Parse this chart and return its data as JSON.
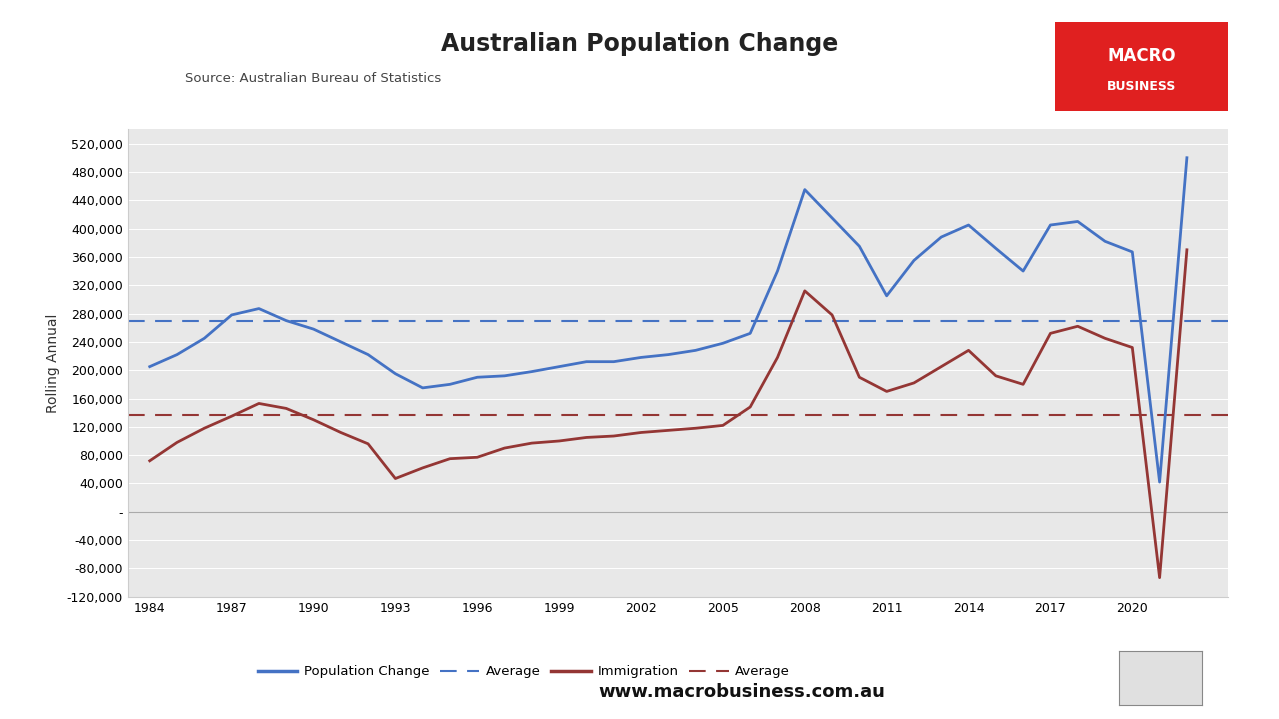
{
  "title": "Australian Population Change",
  "subtitle": "Source: Australian Bureau of Statistics",
  "ylabel": "Rolling Annual",
  "fig_bg_color": "#ffffff",
  "plot_bg_color": "#e8e8e8",
  "ylim": [
    -120000,
    540000
  ],
  "yticks": [
    -120000,
    -80000,
    -40000,
    0,
    40000,
    80000,
    120000,
    160000,
    200000,
    240000,
    280000,
    320000,
    360000,
    400000,
    440000,
    480000,
    520000
  ],
  "pop_avg": 270000,
  "imm_avg": 137000,
  "pop_color": "#4472c4",
  "imm_color": "#943634",
  "pop_avg_color": "#4472c4",
  "imm_avg_color": "#943634",
  "footer_url": "www.macrobusiness.com.au",
  "macro_box_color": "#e02020",
  "years": [
    1984,
    1985,
    1986,
    1987,
    1988,
    1989,
    1990,
    1991,
    1992,
    1993,
    1994,
    1995,
    1996,
    1997,
    1998,
    1999,
    2000,
    2001,
    2002,
    2003,
    2004,
    2005,
    2006,
    2007,
    2008,
    2009,
    2010,
    2011,
    2012,
    2013,
    2014,
    2015,
    2016,
    2017,
    2018,
    2019,
    2020,
    2021,
    2022
  ],
  "pop_change": [
    205000,
    222000,
    245000,
    278000,
    287000,
    270000,
    258000,
    240000,
    222000,
    195000,
    175000,
    180000,
    190000,
    192000,
    198000,
    205000,
    212000,
    212000,
    218000,
    222000,
    228000,
    238000,
    252000,
    340000,
    455000,
    415000,
    375000,
    305000,
    355000,
    388000,
    405000,
    372000,
    340000,
    405000,
    410000,
    382000,
    367000,
    42000,
    500000
  ],
  "immigration": [
    72000,
    98000,
    118000,
    135000,
    153000,
    146000,
    130000,
    112000,
    96000,
    47000,
    62000,
    75000,
    77000,
    90000,
    97000,
    100000,
    105000,
    107000,
    112000,
    115000,
    118000,
    122000,
    148000,
    218000,
    312000,
    278000,
    190000,
    170000,
    182000,
    205000,
    228000,
    192000,
    180000,
    252000,
    262000,
    245000,
    232000,
    -93000,
    370000
  ]
}
